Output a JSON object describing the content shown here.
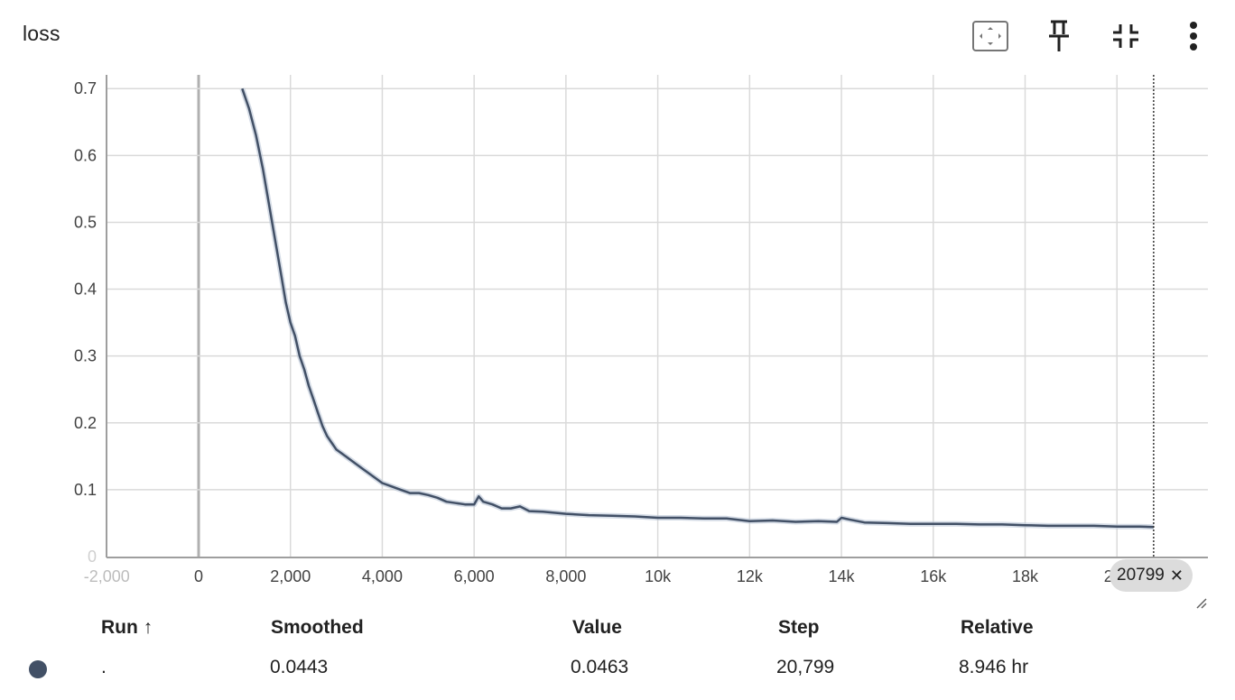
{
  "card": {
    "title": "loss",
    "toolbar": [
      {
        "name": "fit-domain-icon"
      },
      {
        "name": "pin-icon"
      },
      {
        "name": "collapse-icon"
      },
      {
        "name": "more-vert-icon"
      }
    ]
  },
  "colors": {
    "series": "#425066",
    "series_raw": "#b9c4d6",
    "grid": "#dadada",
    "axis": "#9e9e9e",
    "zero_line": "#b0b0b0",
    "cursor": "#333333",
    "chip_bg": "#dcdcdc"
  },
  "chart_data": {
    "type": "line",
    "title": "loss",
    "xlabel": "",
    "ylabel": "",
    "xlim": [
      -2000,
      22000
    ],
    "ylim": [
      0.0,
      0.7
    ],
    "x_ticks": [
      -2000,
      0,
      2000,
      4000,
      6000,
      8000,
      10000,
      12000,
      14000,
      16000,
      18000,
      20000
    ],
    "x_tick_labels": [
      "-2,000",
      "0",
      "2,000",
      "4,000",
      "6,000",
      "8,000",
      "10k",
      "12k",
      "14k",
      "16k",
      "18k",
      "20k"
    ],
    "y_ticks": [
      0.0,
      0.1,
      0.2,
      0.3,
      0.4,
      0.5,
      0.6,
      0.7
    ],
    "y_tick_labels": [
      "0",
      "0.1",
      "0.2",
      "0.3",
      "0.4",
      "0.5",
      "0.6",
      "0.7"
    ],
    "grid": true,
    "legend": "none",
    "cursor_step": 20799,
    "cursor_label": "20799",
    "series": [
      {
        "name": ".",
        "x": [
          950,
          1100,
          1250,
          1400,
          1500,
          1600,
          1700,
          1800,
          1900,
          2000,
          2100,
          2200,
          2300,
          2400,
          2500,
          2600,
          2700,
          2800,
          2900,
          3000,
          3200,
          3400,
          3600,
          3800,
          4000,
          4200,
          4400,
          4600,
          4800,
          5000,
          5200,
          5400,
          5600,
          5800,
          6000,
          6100,
          6200,
          6400,
          6600,
          6800,
          7000,
          7200,
          7500,
          8000,
          8500,
          9000,
          9500,
          10000,
          10500,
          11000,
          11500,
          12000,
          12500,
          13000,
          13500,
          13900,
          14000,
          14200,
          14500,
          15000,
          15500,
          16000,
          16500,
          17000,
          17500,
          18000,
          18500,
          19000,
          19500,
          20000,
          20500,
          20799
        ],
        "y": [
          0.7,
          0.67,
          0.63,
          0.58,
          0.54,
          0.5,
          0.46,
          0.42,
          0.38,
          0.35,
          0.33,
          0.3,
          0.28,
          0.255,
          0.235,
          0.215,
          0.195,
          0.18,
          0.17,
          0.16,
          0.15,
          0.14,
          0.13,
          0.12,
          0.11,
          0.105,
          0.1,
          0.095,
          0.095,
          0.092,
          0.088,
          0.082,
          0.08,
          0.078,
          0.078,
          0.09,
          0.082,
          0.078,
          0.072,
          0.072,
          0.075,
          0.068,
          0.067,
          0.064,
          0.062,
          0.061,
          0.06,
          0.058,
          0.058,
          0.057,
          0.057,
          0.053,
          0.054,
          0.052,
          0.053,
          0.052,
          0.058,
          0.055,
          0.051,
          0.05,
          0.049,
          0.049,
          0.049,
          0.048,
          0.048,
          0.047,
          0.046,
          0.046,
          0.046,
          0.045,
          0.045,
          0.0443
        ]
      }
    ]
  },
  "table": {
    "headers": {
      "run": "Run ↑",
      "smoothed": "Smoothed",
      "value": "Value",
      "step": "Step",
      "relative": "Relative"
    },
    "rows": [
      {
        "run": ".",
        "smoothed": "0.0443",
        "value": "0.0463",
        "step": "20,799",
        "relative": "8.946 hr",
        "color": "#425066"
      }
    ]
  }
}
